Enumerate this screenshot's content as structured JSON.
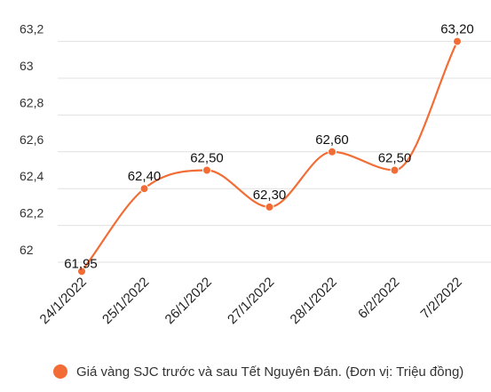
{
  "chart_data": {
    "type": "line",
    "categories": [
      "24/1/2022",
      "25/1/2022",
      "26/1/2022",
      "27/1/2022",
      "28/1/2022",
      "6/2/2022",
      "7/2/2022"
    ],
    "series": [
      {
        "name": "Giá vàng SJC trước và sau Tết Nguyên Đán. (Đơn vị: Triệu đồng)",
        "values": [
          61.95,
          62.4,
          62.5,
          62.3,
          62.6,
          62.5,
          63.2
        ],
        "labels": [
          "61,95",
          "62,40",
          "62,50",
          "62,30",
          "62,60",
          "62,50",
          "63,20"
        ]
      }
    ],
    "y_ticks": [
      "62",
      "62,2",
      "62,4",
      "62,6",
      "62,8",
      "63",
      "63,2"
    ],
    "ylim": [
      62,
      63.2
    ],
    "grid": true,
    "legend_position": "bottom",
    "colors": {
      "series": "#f26d35",
      "grid": "#e0e0e0"
    }
  }
}
